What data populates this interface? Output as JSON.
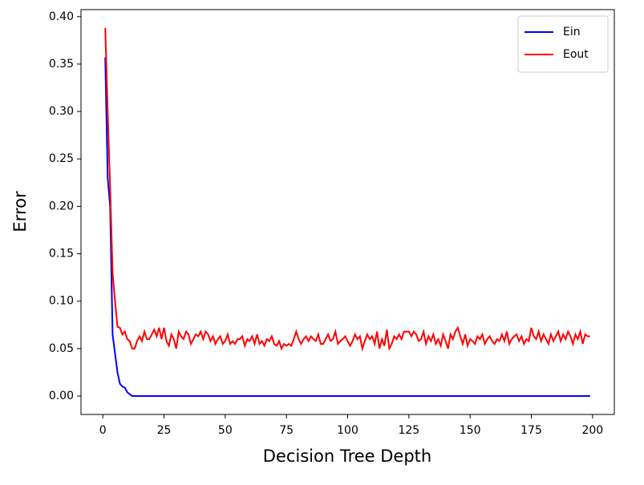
{
  "chart_data": {
    "type": "line",
    "xlabel": "Decision Tree Depth",
    "ylabel": "Error",
    "legend": "upper right",
    "grid": false,
    "xlim": [
      -8.9,
      208.9
    ],
    "ylim": [
      -0.0194,
      0.4074
    ],
    "xticks": [
      0,
      25,
      50,
      75,
      100,
      125,
      150,
      175,
      200
    ],
    "yticks": [
      {
        "value": 0,
        "label": "0.00"
      },
      {
        "value": 0.05,
        "label": "0.05"
      },
      {
        "value": 0.1,
        "label": "0.10"
      },
      {
        "value": 0.15,
        "label": "0.15"
      },
      {
        "value": 0.2,
        "label": "0.20"
      },
      {
        "value": 0.25,
        "label": "0.25"
      },
      {
        "value": 0.3,
        "label": "0.30"
      },
      {
        "value": 0.35,
        "label": "0.35"
      },
      {
        "value": 0.4,
        "label": "0.40"
      }
    ],
    "x": [
      1,
      2,
      3,
      4,
      5,
      6,
      7,
      8,
      9,
      10,
      11,
      12,
      13,
      14,
      15,
      16,
      17,
      18,
      19,
      20,
      21,
      22,
      23,
      24,
      25,
      26,
      27,
      28,
      29,
      30,
      31,
      32,
      33,
      34,
      35,
      36,
      37,
      38,
      39,
      40,
      41,
      42,
      43,
      44,
      45,
      46,
      47,
      48,
      49,
      50,
      51,
      52,
      53,
      54,
      55,
      56,
      57,
      58,
      59,
      60,
      61,
      62,
      63,
      64,
      65,
      66,
      67,
      68,
      69,
      70,
      71,
      72,
      73,
      74,
      75,
      76,
      77,
      78,
      79,
      80,
      81,
      82,
      83,
      84,
      85,
      86,
      87,
      88,
      89,
      90,
      91,
      92,
      93,
      94,
      95,
      96,
      97,
      98,
      99,
      100,
      101,
      102,
      103,
      104,
      105,
      106,
      107,
      108,
      109,
      110,
      111,
      112,
      113,
      114,
      115,
      116,
      117,
      118,
      119,
      120,
      121,
      122,
      123,
      124,
      125,
      126,
      127,
      128,
      129,
      130,
      131,
      132,
      133,
      134,
      135,
      136,
      137,
      138,
      139,
      140,
      141,
      142,
      143,
      144,
      145,
      146,
      147,
      148,
      149,
      150,
      151,
      152,
      153,
      154,
      155,
      156,
      157,
      158,
      159,
      160,
      161,
      162,
      163,
      164,
      165,
      166,
      167,
      168,
      169,
      170,
      171,
      172,
      173,
      174,
      175,
      176,
      177,
      178,
      179,
      180,
      181,
      182,
      183,
      184,
      185,
      186,
      187,
      188,
      189,
      190,
      191,
      192,
      193,
      194,
      195,
      196,
      197,
      198,
      199
    ],
    "series": [
      {
        "name": "Ein",
        "color": "#0000ff",
        "values": [
          0.357,
          0.23,
          0.2,
          0.065,
          0.045,
          0.025,
          0.013,
          0.01,
          0.009,
          0.004,
          0.002,
          0,
          0,
          0,
          0,
          0,
          0,
          0,
          0,
          0,
          0,
          0,
          0,
          0,
          0,
          0,
          0,
          0,
          0,
          0,
          0,
          0,
          0,
          0,
          0,
          0,
          0,
          0,
          0,
          0,
          0,
          0,
          0,
          0,
          0,
          0,
          0,
          0,
          0,
          0,
          0,
          0,
          0,
          0,
          0,
          0,
          0,
          0,
          0,
          0,
          0,
          0,
          0,
          0,
          0,
          0,
          0,
          0,
          0,
          0,
          0,
          0,
          0,
          0,
          0,
          0,
          0,
          0,
          0,
          0,
          0,
          0,
          0,
          0,
          0,
          0,
          0,
          0,
          0,
          0,
          0,
          0,
          0,
          0,
          0,
          0,
          0,
          0,
          0,
          0,
          0,
          0,
          0,
          0,
          0,
          0,
          0,
          0,
          0,
          0,
          0,
          0,
          0,
          0,
          0,
          0,
          0,
          0,
          0,
          0,
          0,
          0,
          0,
          0,
          0,
          0,
          0,
          0,
          0,
          0,
          0,
          0,
          0,
          0,
          0,
          0,
          0,
          0,
          0,
          0,
          0,
          0,
          0,
          0,
          0,
          0,
          0,
          0,
          0,
          0,
          0,
          0,
          0,
          0,
          0,
          0,
          0,
          0,
          0,
          0,
          0,
          0,
          0,
          0,
          0,
          0,
          0,
          0,
          0,
          0,
          0,
          0,
          0,
          0,
          0,
          0,
          0,
          0,
          0,
          0,
          0,
          0,
          0,
          0,
          0,
          0,
          0,
          0,
          0,
          0,
          0,
          0,
          0,
          0,
          0,
          0,
          0,
          0,
          0
        ]
      },
      {
        "name": "Eout",
        "color": "#ff0000",
        "values": [
          0.388,
          0.3,
          0.22,
          0.13,
          0.1,
          0.073,
          0.072,
          0.065,
          0.068,
          0.06,
          0.058,
          0.05,
          0.05,
          0.058,
          0.063,
          0.058,
          0.068,
          0.06,
          0.06,
          0.065,
          0.07,
          0.063,
          0.072,
          0.06,
          0.072,
          0.058,
          0.053,
          0.065,
          0.06,
          0.05,
          0.068,
          0.063,
          0.06,
          0.068,
          0.065,
          0.055,
          0.06,
          0.065,
          0.063,
          0.068,
          0.06,
          0.068,
          0.065,
          0.058,
          0.063,
          0.055,
          0.06,
          0.063,
          0.055,
          0.058,
          0.065,
          0.055,
          0.058,
          0.055,
          0.06,
          0.06,
          0.063,
          0.053,
          0.06,
          0.058,
          0.063,
          0.055,
          0.065,
          0.055,
          0.058,
          0.053,
          0.06,
          0.058,
          0.063,
          0.055,
          0.053,
          0.058,
          0.05,
          0.055,
          0.053,
          0.055,
          0.053,
          0.06,
          0.068,
          0.06,
          0.055,
          0.06,
          0.063,
          0.058,
          0.063,
          0.06,
          0.058,
          0.065,
          0.055,
          0.055,
          0.06,
          0.065,
          0.058,
          0.06,
          0.068,
          0.055,
          0.058,
          0.06,
          0.063,
          0.058,
          0.053,
          0.058,
          0.065,
          0.06,
          0.063,
          0.05,
          0.058,
          0.065,
          0.06,
          0.063,
          0.055,
          0.068,
          0.05,
          0.06,
          0.053,
          0.07,
          0.05,
          0.055,
          0.063,
          0.06,
          0.065,
          0.06,
          0.068,
          0.068,
          0.068,
          0.063,
          0.068,
          0.065,
          0.058,
          0.06,
          0.068,
          0.055,
          0.063,
          0.058,
          0.065,
          0.055,
          0.06,
          0.053,
          0.065,
          0.058,
          0.05,
          0.065,
          0.06,
          0.068,
          0.072,
          0.063,
          0.055,
          0.065,
          0.053,
          0.06,
          0.058,
          0.055,
          0.063,
          0.06,
          0.065,
          0.055,
          0.06,
          0.063,
          0.058,
          0.055,
          0.06,
          0.058,
          0.065,
          0.058,
          0.068,
          0.055,
          0.06,
          0.063,
          0.065,
          0.058,
          0.063,
          0.055,
          0.06,
          0.058,
          0.072,
          0.063,
          0.06,
          0.068,
          0.058,
          0.065,
          0.06,
          0.055,
          0.065,
          0.058,
          0.063,
          0.068,
          0.058,
          0.065,
          0.06,
          0.068,
          0.063,
          0.055,
          0.065,
          0.06,
          0.068,
          0.055,
          0.065,
          0.063,
          0.063
        ]
      }
    ]
  }
}
